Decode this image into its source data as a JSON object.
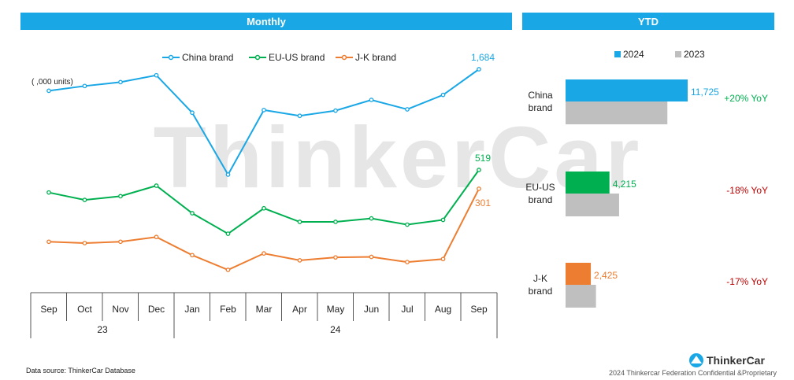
{
  "header": {
    "monthly_label": "Monthly",
    "ytd_label": "YTD"
  },
  "colors": {
    "china": "#1aa7e6",
    "euus": "#00b050",
    "jk": "#ed7d31",
    "prior": "#bfbfbf",
    "header_bg": "#1aa7e6",
    "yoy_pos": "#00b050",
    "yoy_neg": "#c00000"
  },
  "watermark": "ThinkerCar",
  "chart_data": [
    {
      "type": "line",
      "unit_label": "( ,000 units)",
      "categories": [
        "Sep",
        "Oct",
        "Nov",
        "Dec",
        "Jan",
        "Feb",
        "Mar",
        "Apr",
        "May",
        "Jun",
        "Jul",
        "Aug",
        "Sep"
      ],
      "year_groups": [
        {
          "label": "23",
          "span": 4
        },
        {
          "label": "24",
          "span": 9
        }
      ],
      "series": [
        {
          "name": "China brand",
          "key": "china",
          "values": [
            1435,
            1490,
            1535,
            1614,
            1181,
            465,
            1212,
            1145,
            1205,
            1329,
            1220,
            1387,
            1684
          ],
          "end_label": "1,684"
        },
        {
          "name": "EU-US brand",
          "key": "euus",
          "values": [
            258,
            172,
            215,
            337,
            18,
            -219,
            75,
            -82,
            -82,
            -42,
            -114,
            -59,
            519
          ],
          "end_label": "519"
        },
        {
          "name": "J-K brand",
          "key": "jk",
          "values": [
            -312,
            -327,
            -312,
            -257,
            -467,
            -637,
            -447,
            -527,
            -493,
            -487,
            -547,
            -512,
            301
          ],
          "end_label": "301"
        }
      ],
      "legend": "top"
    },
    {
      "type": "bar",
      "orientation": "horizontal",
      "legend": [
        {
          "name": "2024",
          "key": "current"
        },
        {
          "name": "2023",
          "key": "prior"
        }
      ],
      "categories": [
        "China brand",
        "EU-US brand",
        "J-K brand"
      ],
      "category_lines": [
        [
          "China",
          "brand"
        ],
        [
          "EU-US",
          "brand"
        ],
        [
          "J-K",
          "brand"
        ]
      ],
      "series": [
        {
          "name": "2024",
          "values": [
            11725,
            4215,
            2425
          ],
          "labels": [
            "11,725",
            "4,215",
            "2,425"
          ]
        },
        {
          "name": "2023",
          "values": [
            9775,
            5140,
            2920
          ]
        }
      ],
      "yoy": [
        "+20% YoY",
        "-18% YoY",
        "-17% YoY"
      ]
    }
  ],
  "footer": {
    "source": "Data source: ThinkerCar Database",
    "brand": "ThinkerCar",
    "confidential": "2024 Thinkercar Federation Confidential &Proprietary"
  }
}
